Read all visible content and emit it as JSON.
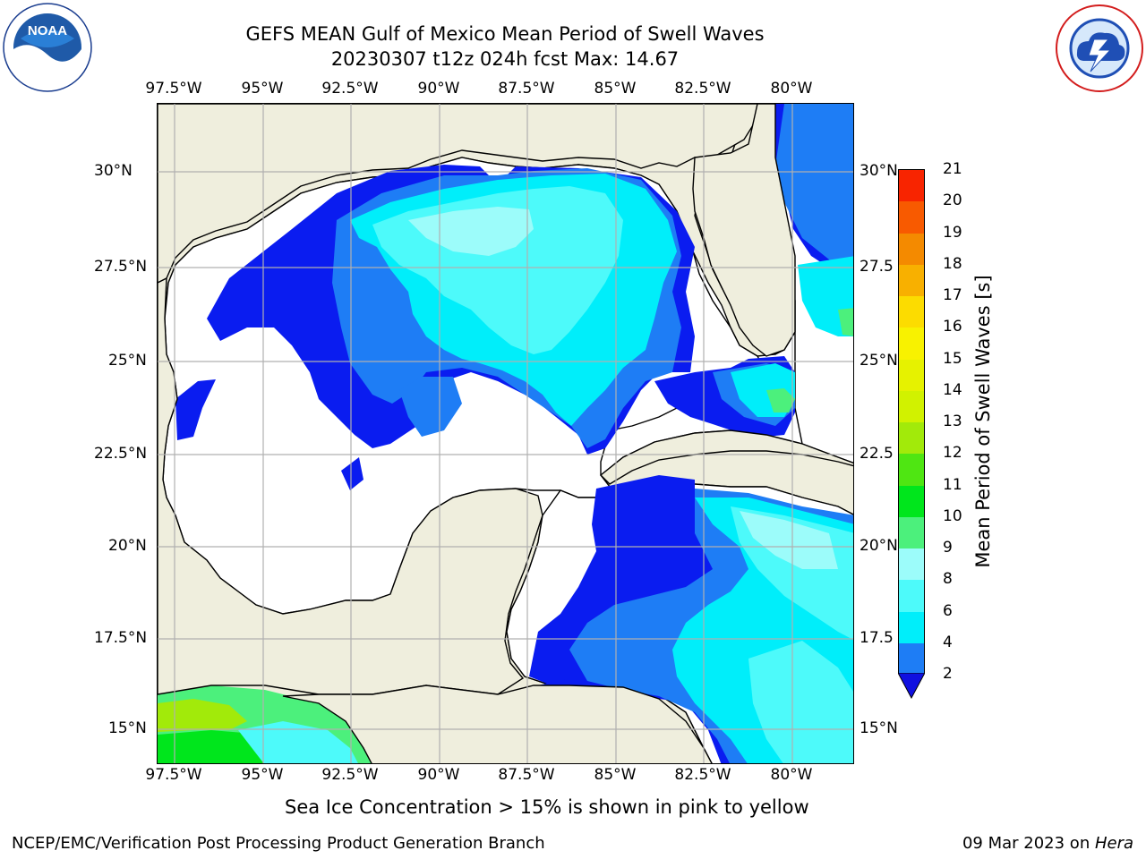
{
  "title": {
    "line1": "GEFS MEAN Gulf of Mexico Mean Period of Swell Waves",
    "line2": "20230307 t12z 024h fcst   Max: 14.67"
  },
  "logos": {
    "left": {
      "icon": "noaa-logo-icon",
      "text": "NOAA",
      "ring_text": "NATIONAL OCEANIC AND ATMOSPHERIC ADMINISTRATION · U.S. DEPARTMENT OF COMMERCE"
    },
    "right": {
      "icon": "nws-logo-icon",
      "ring_text": "NATIONAL WEATHER SERVICE"
    }
  },
  "map": {
    "lon_ticks": [
      "97.5°W",
      "95°W",
      "92.5°W",
      "90°W",
      "87.5°W",
      "85°W",
      "82.5°W",
      "80°W"
    ],
    "lat_ticks_left": [
      "30°N",
      "27.5°N",
      "25°N",
      "22.5°N",
      "20°N",
      "17.5°N",
      "15°N"
    ],
    "lat_ticks_right": [
      "30°N",
      "27.5",
      "25°N",
      "22.5",
      "20°N",
      "17.5",
      "15°N"
    ],
    "extent": {
      "lon_min": -98.0,
      "lon_max": -78.2,
      "lat_min": 14.0,
      "lat_max": 31.8
    },
    "land_color": "#efeedd",
    "grid_color": "#b0b0b0"
  },
  "colorbar": {
    "label": "Mean Period of Swell Waves [s]",
    "tick_labels": [
      "21",
      "20",
      "19",
      "18",
      "17",
      "16",
      "15",
      "14",
      "13",
      "12",
      "11",
      "10",
      "9",
      "8",
      "6",
      "4",
      "2"
    ],
    "levels": [
      2,
      4,
      6,
      8,
      9,
      10,
      11,
      12,
      13,
      14,
      15,
      16,
      17,
      18,
      19,
      20,
      21
    ],
    "colors": [
      "#0a1cf0",
      "#1e7df5",
      "#00eefa",
      "#4dfafa",
      "#9cfcfa",
      "#4cf07c",
      "#00e61c",
      "#4fe612",
      "#a2ea0a",
      "#d1f200",
      "#e6f200",
      "#f8f200",
      "#fcdc00",
      "#f8b000",
      "#f48a00",
      "#f85a00",
      "#f82400",
      "#f00000"
    ],
    "under_color": "#1010e0"
  },
  "footer": {
    "note": "Sea Ice Concentration > 15% is shown in pink to yellow",
    "left": "NCEP/EMC/Verification Post Processing Product Generation Branch",
    "right_date": "09 Mar 2023 on ",
    "right_machine": "Hera"
  }
}
